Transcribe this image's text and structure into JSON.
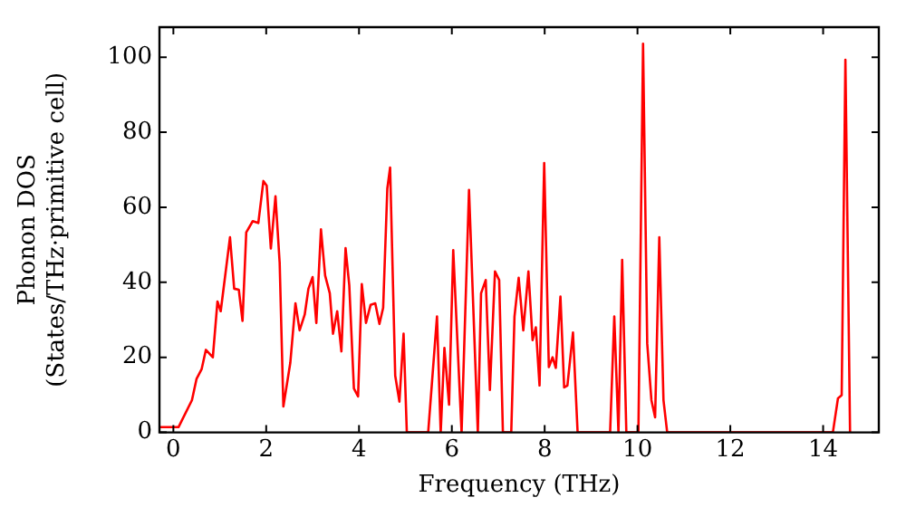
{
  "chart_data": {
    "type": "line",
    "xlabel": "Frequency (THz)",
    "ylabel": "Phonon DOS\n(States/THz·primitive cell)",
    "xlim": [
      -0.3,
      15.2
    ],
    "ylim": [
      0,
      108
    ],
    "xticks": [
      0,
      2,
      4,
      6,
      8,
      10,
      12,
      14
    ],
    "yticks": [
      0,
      20,
      40,
      60,
      80,
      100
    ],
    "grid": false,
    "legend": false,
    "marker": "none",
    "line_style": "solid",
    "series": [
      {
        "color": "#ff0000",
        "x": [
          -0.3,
          0.11,
          0.4,
          0.5,
          0.61,
          0.7,
          0.85,
          0.95,
          1.02,
          1.22,
          1.31,
          1.41,
          1.49,
          1.57,
          1.71,
          1.83,
          1.94,
          2.01,
          2.1,
          2.2,
          2.29,
          2.37,
          2.52,
          2.63,
          2.72,
          2.83,
          2.91,
          3.0,
          3.08,
          3.18,
          3.27,
          3.37,
          3.44,
          3.53,
          3.62,
          3.71,
          3.79,
          3.89,
          3.98,
          4.06,
          4.15,
          4.25,
          4.35,
          4.44,
          4.52,
          4.61,
          4.67,
          4.78,
          4.87,
          4.96,
          5.03,
          5.49,
          5.68,
          5.76,
          5.84,
          5.94,
          6.03,
          6.21,
          6.37,
          6.56,
          6.63,
          6.73,
          6.82,
          6.93,
          7.02,
          7.1,
          7.28,
          7.35,
          7.44,
          7.54,
          7.65,
          7.74,
          7.81,
          7.89,
          7.99,
          8.09,
          8.17,
          8.24,
          8.34,
          8.42,
          8.49,
          8.61,
          8.71,
          9.41,
          9.5,
          9.59,
          9.67,
          9.76,
          10.02,
          10.12,
          10.21,
          10.3,
          10.38,
          10.47,
          10.56,
          10.64,
          14.21,
          14.32,
          14.4,
          14.48,
          14.58
        ],
        "values": [
          1.4,
          1.4,
          8.6,
          14.3,
          16.9,
          22,
          20,
          34.9,
          32.3,
          52,
          38.3,
          38,
          29.7,
          53.3,
          56.3,
          55.8,
          67,
          65.8,
          49,
          62.9,
          45.2,
          6.9,
          18.6,
          34.4,
          27.2,
          31.4,
          38.3,
          41.4,
          29.2,
          54.1,
          41.8,
          37.1,
          26.3,
          32.3,
          21.6,
          49.1,
          39.2,
          11.7,
          9.6,
          39.5,
          29.2,
          34,
          34.4,
          28.9,
          33.2,
          65,
          70.6,
          15.1,
          8.2,
          26.3,
          0,
          0,
          30.9,
          0,
          22.5,
          7.4,
          48.6,
          0,
          64.6,
          0,
          37.1,
          40.6,
          11.3,
          42.9,
          40.6,
          0,
          0,
          30.9,
          41.2,
          27.2,
          42.9,
          24.6,
          28,
          12.5,
          71.8,
          17.4,
          20,
          17.2,
          36.2,
          12,
          12.5,
          26.6,
          0,
          0,
          30.9,
          0,
          46,
          0,
          0,
          103.6,
          23.7,
          8.6,
          4,
          52,
          8.6,
          0,
          0,
          9.1,
          9.9,
          99.3,
          0
        ]
      }
    ]
  }
}
